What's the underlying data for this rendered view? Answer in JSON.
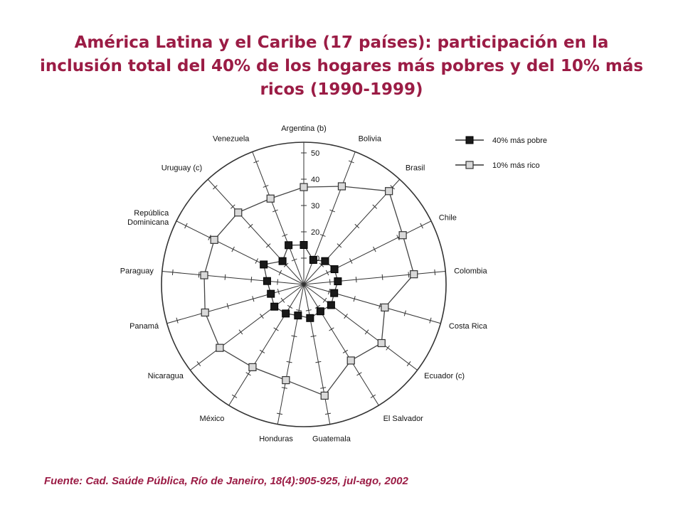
{
  "title_lines": [
    "América Latina y el Caribe (17 países): participación en la",
    "inclusión total del 40% de los hogares más pobres y del 10% más",
    "ricos (1990-1999)"
  ],
  "source": "Fuente: Cad. Saúde Pública, Río de Janeiro, 18(4):905-925, jul-ago, 2002",
  "colors": {
    "title": "#9b1c45",
    "series_poor": "#1a1a1a",
    "series_rich": "#d9d9d9",
    "line": "#333333"
  },
  "chart_data": {
    "type": "radar",
    "categories": [
      "Argentina (b)",
      "Bolivia",
      "Brasil",
      "Chile",
      "Colombia",
      "Costa Rica",
      "Ecuador (c)",
      "El Salvador",
      "Guatemala",
      "Honduras",
      "México",
      "Nicaragua",
      "Panamá",
      "Paraguay",
      "República Dominicana",
      "Uruguay (c)",
      "Venezuela"
    ],
    "radial_ticks": [
      10,
      20,
      30,
      40,
      50
    ],
    "rlim": [
      0,
      50
    ],
    "series": [
      {
        "name": "40% más pobre",
        "marker": "filled-square",
        "values": [
          15,
          10,
          12,
          13,
          13,
          12,
          13,
          12,
          13,
          12,
          13,
          14,
          13,
          14,
          17,
          12,
          16
        ]
      },
      {
        "name": "10% más rico",
        "marker": "open-square",
        "values": [
          37,
          40,
          48,
          42,
          42,
          32,
          37,
          34,
          43,
          37,
          37,
          40,
          39,
          38,
          38,
          37,
          35
        ]
      }
    ],
    "legend_position": "top-right",
    "grid": true
  }
}
